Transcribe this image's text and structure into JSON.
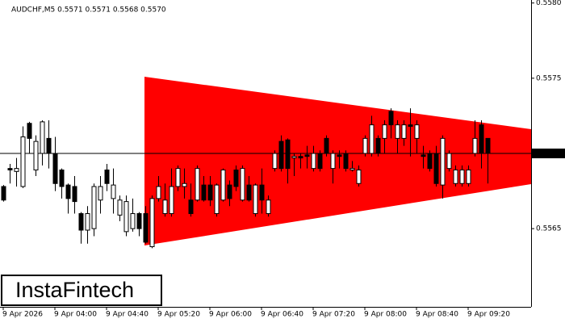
{
  "chart_data": {
    "type": "candlestick",
    "title": "AUDCHF,M5  0.5571 0.5571 0.5568 0.5570",
    "categories": [
      "9 Apr 2026",
      null,
      null,
      null,
      null,
      null,
      null,
      null,
      "9 Apr 04:00",
      null,
      null,
      null,
      null,
      null,
      null,
      null,
      "9 Apr 04:40",
      null,
      null,
      null,
      null,
      null,
      null,
      null,
      "9 Apr 05:20",
      null,
      null,
      null,
      null,
      null,
      null,
      null,
      "9 Apr 06:00",
      null,
      null,
      null,
      null,
      null,
      null,
      null,
      "9 Apr 06:40",
      null,
      null,
      null,
      null,
      null,
      null,
      null,
      "9 Apr 07:20",
      null,
      null,
      null,
      null,
      null,
      null,
      null,
      "9 Apr 08:00",
      null,
      null,
      null,
      null,
      null,
      null,
      null,
      "9 Apr 08:40",
      null,
      null,
      null,
      null,
      null,
      null,
      null,
      "9 Apr 09:20",
      null,
      null,
      null
    ],
    "open": [
      0.55678,
      0.5569,
      0.55688,
      0.55678,
      0.5572,
      0.55689,
      0.557,
      0.5571,
      0.557,
      0.55689,
      0.55679,
      0.55678,
      0.5566,
      0.55649,
      0.5565,
      0.55669,
      0.55689,
      0.5567,
      0.55659,
      0.55648,
      0.5565,
      0.5566,
      0.5566,
      0.55638,
      0.5567,
      0.5566,
      0.5566,
      0.55678,
      0.55678,
      0.55669,
      0.55669,
      0.55679,
      0.55679,
      0.5566,
      0.55669,
      0.55679,
      0.55689,
      0.55669,
      0.55679,
      0.5566,
      0.55679,
      0.5566,
      0.5569,
      0.55708,
      0.55709,
      0.55697,
      0.55698,
      0.55699,
      0.5569,
      0.557,
      0.5571,
      0.5569,
      0.55699,
      0.557,
      0.55689,
      0.5568,
      0.557,
      0.557,
      0.5571,
      0.5571,
      0.55728,
      0.5571,
      0.5571,
      0.55719,
      0.5571,
      0.55699,
      0.557,
      0.557,
      0.55679,
      0.5569,
      0.5568,
      0.5568,
      0.5568,
      0.557,
      0.55719,
      0.5571
    ],
    "high": [
      0.55679,
      0.55693,
      0.55697,
      0.55718,
      0.55721,
      0.55712,
      0.55722,
      0.55722,
      0.55711,
      0.5569,
      0.5568,
      0.55685,
      0.55661,
      0.55665,
      0.5568,
      0.55685,
      0.55693,
      0.5569,
      0.55672,
      0.55672,
      0.5567,
      0.55661,
      0.55665,
      0.55672,
      0.55685,
      0.5568,
      0.5569,
      0.55692,
      0.5569,
      0.5568,
      0.55692,
      0.55685,
      0.55685,
      0.5568,
      0.5569,
      0.55682,
      0.55692,
      0.55692,
      0.55685,
      0.5568,
      0.5569,
      0.55672,
      0.55702,
      0.55712,
      0.5571,
      0.557,
      0.557,
      0.55705,
      0.55705,
      0.55702,
      0.55712,
      0.55702,
      0.55702,
      0.55702,
      0.55695,
      0.55692,
      0.55712,
      0.55725,
      0.55712,
      0.55722,
      0.5573,
      0.55722,
      0.55722,
      0.5573,
      0.55722,
      0.55705,
      0.55702,
      0.55705,
      0.55712,
      0.55702,
      0.55692,
      0.55692,
      0.55692,
      0.55722,
      0.55722,
      0.5571
    ],
    "low": [
      0.55668,
      0.5568,
      0.55678,
      0.55677,
      0.557,
      0.55685,
      0.55692,
      0.5569,
      0.55675,
      0.5567,
      0.5566,
      0.5566,
      0.5564,
      0.5564,
      0.55645,
      0.5566,
      0.55675,
      0.5566,
      0.55655,
      0.55645,
      0.55648,
      0.55645,
      0.5564,
      0.55637,
      0.55668,
      0.55658,
      0.55658,
      0.55675,
      0.5567,
      0.55658,
      0.55668,
      0.55668,
      0.55665,
      0.55658,
      0.55668,
      0.55665,
      0.55675,
      0.55668,
      0.55668,
      0.55658,
      0.5566,
      0.55658,
      0.55688,
      0.55688,
      0.5568,
      0.55685,
      0.5569,
      0.5569,
      0.55688,
      0.55688,
      0.55698,
      0.5568,
      0.5569,
      0.55688,
      0.55688,
      0.55678,
      0.55698,
      0.55698,
      0.55698,
      0.557,
      0.5571,
      0.557,
      0.55705,
      0.55698,
      0.557,
      0.5569,
      0.55688,
      0.55678,
      0.5567,
      0.55688,
      0.55678,
      0.55678,
      0.55678,
      0.55698,
      0.5569,
      0.5568
    ],
    "close": [
      0.55669,
      0.55689,
      0.5569,
      0.55711,
      0.5571,
      0.55708,
      0.55721,
      0.557,
      0.5568,
      0.55678,
      0.5567,
      0.55668,
      0.55649,
      0.5566,
      0.55678,
      0.55678,
      0.5568,
      0.55679,
      0.55669,
      0.55668,
      0.5566,
      0.5565,
      0.55641,
      0.5567,
      0.55678,
      0.55669,
      0.55678,
      0.5569,
      0.5568,
      0.5566,
      0.5569,
      0.55669,
      0.55669,
      0.55679,
      0.55689,
      0.5567,
      0.55678,
      0.5569,
      0.55669,
      0.55679,
      0.55669,
      0.55669,
      0.557,
      0.5569,
      0.5569,
      0.55698,
      0.55697,
      0.55698,
      0.557,
      0.5569,
      0.557,
      0.557,
      0.55698,
      0.5569,
      0.5569,
      0.55689,
      0.5571,
      0.55719,
      0.557,
      0.55719,
      0.55719,
      0.55719,
      0.55719,
      0.55718,
      0.55719,
      0.55698,
      0.5569,
      0.5568,
      0.5571,
      0.557,
      0.55689,
      0.55689,
      0.55689,
      0.5571,
      0.557,
      0.557
    ],
    "up_color": "#ffffff",
    "down_color": "#000000",
    "ylim": [
      0.55598,
      0.55802
    ],
    "yticks": [
      {
        "value": 0.558,
        "label": "0.5580"
      },
      {
        "value": 0.5575,
        "label": "0.5575"
      },
      {
        "value": 0.557,
        "label": "0.5570"
      },
      {
        "value": 0.5565,
        "label": "0.5565"
      }
    ],
    "current_price": 0.557,
    "grid": false
  },
  "watermark": "InstaFintech"
}
